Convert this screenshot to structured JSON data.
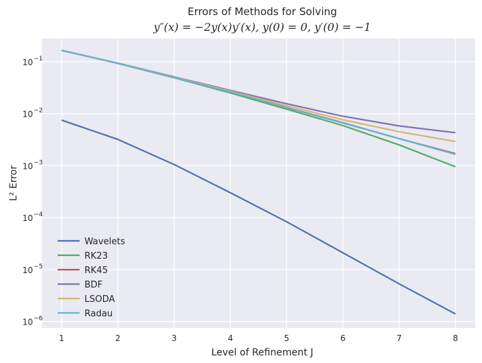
{
  "chart_data": {
    "type": "line",
    "title": "Errors of Methods for Solving",
    "subtitle": "y″(x) = −2y(x)y′(x), y(0) = 0, y′(0) = −1",
    "xlabel": "Level of Refinement J",
    "ylabel": "L² Error",
    "yscale": "log",
    "xlim": [
      0.65,
      8.35
    ],
    "ylim": [
      7.5e-07,
      0.28
    ],
    "x": [
      1,
      2,
      3,
      4,
      5,
      6,
      7,
      8
    ],
    "x_tick_labels": [
      "1",
      "2",
      "3",
      "4",
      "5",
      "6",
      "7",
      "8"
    ],
    "y_ticks": [
      {
        "value": 0.1,
        "base": "10",
        "exp": "−1"
      },
      {
        "value": 0.01,
        "base": "10",
        "exp": "−2"
      },
      {
        "value": 0.001,
        "base": "10",
        "exp": "−3"
      },
      {
        "value": 0.0001,
        "base": "10",
        "exp": "−4"
      },
      {
        "value": 1e-05,
        "base": "10",
        "exp": "−5"
      },
      {
        "value": 1e-06,
        "base": "10",
        "exp": "−6"
      }
    ],
    "grid": true,
    "legend_position": "lower-left",
    "series": [
      {
        "name": "Wavelets",
        "color": "#4c72b0",
        "values": [
          0.0075,
          0.0032,
          0.00105,
          0.0003,
          8.3e-05,
          2.1e-05,
          5.3e-06,
          1.4e-06
        ]
      },
      {
        "name": "RK23",
        "color": "#55a868",
        "values": [
          0.165,
          0.093,
          0.049,
          0.025,
          0.0122,
          0.0059,
          0.0025,
          0.00095
        ]
      },
      {
        "name": "RK45",
        "color": "#c44e52",
        "values": [
          0.165,
          0.093,
          0.049,
          0.026,
          0.0131,
          0.0067,
          0.0033,
          0.0017
        ]
      },
      {
        "name": "BDF",
        "color": "#8172b3",
        "values": [
          0.165,
          0.094,
          0.051,
          0.028,
          0.0155,
          0.0089,
          0.0058,
          0.0043
        ]
      },
      {
        "name": "LSODA",
        "color": "#ccb974",
        "values": [
          0.165,
          0.094,
          0.05,
          0.027,
          0.0142,
          0.0076,
          0.0045,
          0.0029
        ]
      },
      {
        "name": "Radau",
        "color": "#64b5cd",
        "values": [
          0.165,
          0.093,
          0.049,
          0.026,
          0.013,
          0.0066,
          0.0033,
          0.00165
        ]
      }
    ]
  }
}
